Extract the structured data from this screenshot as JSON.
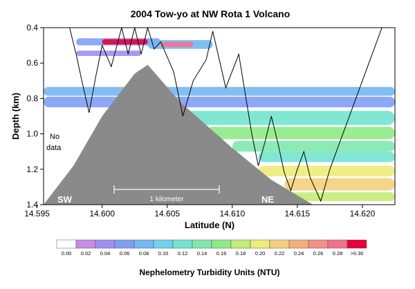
{
  "chart_data": {
    "type": "heatmap",
    "title": "2004 Tow-yo at NW Rota 1 Volcano",
    "xlabel": "Latitude (N)",
    "ylabel": "Depth (km)",
    "xlim": [
      14.5955,
      14.6225
    ],
    "ylim": [
      1.4,
      0.4
    ],
    "x_ticks": [
      14.595,
      14.6,
      14.605,
      14.61,
      14.615,
      14.62
    ],
    "x_tick_labels": [
      "14.595",
      "14.600",
      "14.605",
      "14.610",
      "14.615",
      "14.620"
    ],
    "y_ticks": [
      0.4,
      0.6,
      0.8,
      1.0,
      1.2,
      1.4
    ],
    "y_tick_labels": [
      "0.4",
      "0.6",
      "0.8",
      "1.0",
      "1.2",
      "1.4"
    ],
    "seafloor_profile": {
      "latitude": [
        14.5955,
        14.5978,
        14.6,
        14.6025,
        14.6035,
        14.606,
        14.61,
        14.613,
        14.6162,
        14.617,
        14.6225
      ],
      "depth_km": [
        1.4,
        1.18,
        0.9,
        0.66,
        0.61,
        0.82,
        1.08,
        1.26,
        1.4,
        1.4,
        1.4
      ],
      "color": "#8a8a8a"
    },
    "towyo_track": {
      "latitude": [
        14.5975,
        14.598,
        14.5985,
        14.599,
        14.5995,
        14.6,
        14.6007,
        14.6015,
        14.602,
        14.6025,
        14.603,
        14.6035,
        14.604,
        14.6045,
        14.6055,
        14.6062,
        14.607,
        14.608,
        14.6085,
        14.6095,
        14.6105,
        14.6115,
        14.612,
        14.6125,
        14.613,
        14.6135,
        14.614,
        14.6145,
        14.615,
        14.6155,
        14.616,
        14.6168,
        14.6175,
        14.6185,
        14.62,
        14.621,
        14.6215
      ],
      "depth_km": [
        0.4,
        0.55,
        0.72,
        0.88,
        0.68,
        0.5,
        0.62,
        0.4,
        0.55,
        0.4,
        0.55,
        0.4,
        0.52,
        0.48,
        0.65,
        0.9,
        0.7,
        0.58,
        0.42,
        0.74,
        0.55,
        1.0,
        1.18,
        1.05,
        0.9,
        1.05,
        1.22,
        1.32,
        1.2,
        1.1,
        1.25,
        1.38,
        1.2,
        1.0,
        0.7,
        0.5,
        0.4
      ]
    },
    "plumes": [
      {
        "lat_range": [
          14.5955,
          14.6225
        ],
        "depth_range": [
          0.735,
          0.785
        ],
        "ntu": 0.08
      },
      {
        "lat_range": [
          14.5955,
          14.6225
        ],
        "depth_range": [
          0.79,
          0.85
        ],
        "ntu": 0.06
      },
      {
        "lat_range": [
          14.6055,
          14.6225
        ],
        "depth_range": [
          0.87,
          0.95
        ],
        "ntu": 0.12
      },
      {
        "lat_range": [
          14.608,
          14.6225
        ],
        "depth_range": [
          0.96,
          1.03
        ],
        "ntu": 0.16
      },
      {
        "lat_range": [
          14.61,
          14.6225
        ],
        "depth_range": [
          1.04,
          1.1
        ],
        "ntu": 0.14
      },
      {
        "lat_range": [
          14.612,
          14.6225
        ],
        "depth_range": [
          1.1,
          1.16
        ],
        "ntu": 0.12
      },
      {
        "lat_range": [
          14.612,
          14.6225
        ],
        "depth_range": [
          1.18,
          1.24
        ],
        "ntu": 0.2
      },
      {
        "lat_range": [
          14.614,
          14.6225
        ],
        "depth_range": [
          1.25,
          1.32
        ],
        "ntu": 0.22
      },
      {
        "lat_range": [
          14.614,
          14.6225
        ],
        "depth_range": [
          1.33,
          1.38
        ],
        "ntu": 0.18
      },
      {
        "lat_range": [
          14.6,
          14.6035
        ],
        "depth_range": [
          0.465,
          0.495
        ],
        "ntu": 0.3
      },
      {
        "lat_range": [
          14.598,
          14.6045
        ],
        "depth_range": [
          0.46,
          0.5
        ],
        "ntu": 0.06
      },
      {
        "lat_range": [
          14.6045,
          14.607
        ],
        "depth_range": [
          0.48,
          0.51
        ],
        "ntu": 0.28
      },
      {
        "lat_range": [
          14.6035,
          14.6085
        ],
        "depth_range": [
          0.47,
          0.52
        ],
        "ntu": 0.08
      },
      {
        "lat_range": [
          14.598,
          14.603
        ],
        "depth_range": [
          0.53,
          0.56
        ],
        "ntu": 0.04
      }
    ],
    "annotations": {
      "no_data": [
        "No",
        "data"
      ],
      "sw": "SW",
      "ne": "NE",
      "scale_bar": "1 kilometer"
    },
    "colorbar": {
      "title": "Nephelometry Turbidity Units (NTU)",
      "tick_labels": [
        "0.00",
        "0.02",
        "0.04",
        "0.06",
        "0.08",
        "0.10",
        "0.12",
        "0.14",
        "0.16",
        "0.18",
        "0.20",
        "0.22",
        "0.24",
        "0.26",
        "0.28",
        ">0.30"
      ],
      "colors": [
        "#ffffff",
        "#c98ae8",
        "#9f8ff2",
        "#7f9ef5",
        "#73b8f2",
        "#6fd1ef",
        "#73e4d0",
        "#7fe9ad",
        "#8fea86",
        "#c4ec78",
        "#ecec78",
        "#f4d07c",
        "#f4ae7c",
        "#f29086",
        "#f0728c",
        "#e8003c"
      ]
    }
  }
}
